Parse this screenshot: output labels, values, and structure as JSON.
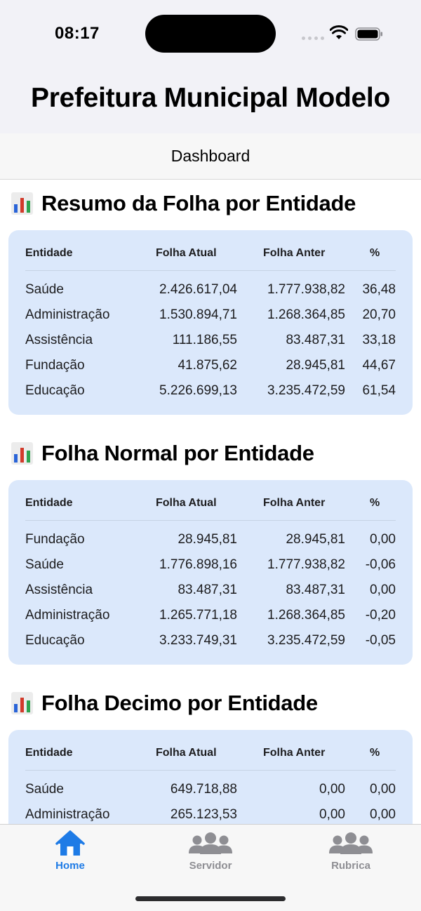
{
  "status_bar": {
    "time": "08:17"
  },
  "app": {
    "title": "Prefeitura Municipal Modelo"
  },
  "nav": {
    "title": "Dashboard"
  },
  "table_headers": {
    "entidade": "Entidade",
    "atual": "Folha Atual",
    "anter": "Folha Anter",
    "pct": "%"
  },
  "sections": [
    {
      "title": "Resumo da Folha por Entidade",
      "rows": [
        {
          "entidade": "Saúde",
          "atual": "2.426.617,04",
          "anter": "1.777.938,82",
          "pct": "36,48"
        },
        {
          "entidade": "Administração",
          "atual": "1.530.894,71",
          "anter": "1.268.364,85",
          "pct": "20,70"
        },
        {
          "entidade": "Assistência",
          "atual": "111.186,55",
          "anter": "83.487,31",
          "pct": "33,18"
        },
        {
          "entidade": "Fundação",
          "atual": "41.875,62",
          "anter": "28.945,81",
          "pct": "44,67"
        },
        {
          "entidade": "Educação",
          "atual": "5.226.699,13",
          "anter": "3.235.472,59",
          "pct": "61,54"
        }
      ]
    },
    {
      "title": "Folha Normal por Entidade",
      "rows": [
        {
          "entidade": "Fundação",
          "atual": "28.945,81",
          "anter": "28.945,81",
          "pct": "0,00"
        },
        {
          "entidade": "Saúde",
          "atual": "1.776.898,16",
          "anter": "1.777.938,82",
          "pct": "-0,06"
        },
        {
          "entidade": "Assistência",
          "atual": "83.487,31",
          "anter": "83.487,31",
          "pct": "0,00"
        },
        {
          "entidade": "Administração",
          "atual": "1.265.771,18",
          "anter": "1.268.364,85",
          "pct": "-0,20"
        },
        {
          "entidade": "Educação",
          "atual": "3.233.749,31",
          "anter": "3.235.472,59",
          "pct": "-0,05"
        }
      ]
    },
    {
      "title": "Folha Decimo por Entidade",
      "rows": [
        {
          "entidade": "Saúde",
          "atual": "649.718,88",
          "anter": "0,00",
          "pct": "0,00"
        },
        {
          "entidade": "Administração",
          "atual": "265.123,53",
          "anter": "0,00",
          "pct": "0,00"
        }
      ]
    }
  ],
  "tabs": [
    {
      "label": "Home",
      "icon": "house-icon",
      "active": true
    },
    {
      "label": "Servidor",
      "icon": "people-icon",
      "active": false
    },
    {
      "label": "Rubrica",
      "icon": "people-icon",
      "active": false
    }
  ],
  "colors": {
    "accent": "#1e7be6",
    "card_bg": "#dbe8fb",
    "inactive": "#8e8e93"
  }
}
